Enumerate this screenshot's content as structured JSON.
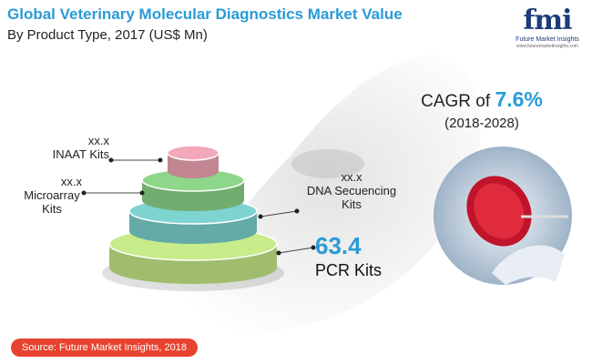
{
  "title": "Global Veterinary Molecular Diagnostics Market Value",
  "subtitle": "By Product Type, 2017 (US$ Mn)",
  "logo": {
    "mark": "fmi",
    "name": "Future Market Insights",
    "url": "www.futuremarketinsights.com"
  },
  "cagr": {
    "prefix": "CAGR of ",
    "value": "7.6%",
    "period": "(2018-2028)"
  },
  "source": "Source: Future Market Insights, 2018",
  "colors": {
    "accent": "#2a9bd6",
    "source_bg": "#e8432e"
  },
  "chart_data": {
    "type": "stacked-tiers",
    "tiers": [
      {
        "name": "INAAT Kits",
        "value_label": "xx.x",
        "color": "#f2a8b8"
      },
      {
        "name": "Microarray Kits",
        "value_label": "xx.x",
        "color": "#8ed78a"
      },
      {
        "name": "DNA Secuencing Kits",
        "value_label": "xx.x",
        "color": "#7dd4d0"
      },
      {
        "name": "PCR Kits",
        "value_label": "63.4",
        "value": 63.4,
        "color": "#c8ec8a"
      }
    ]
  }
}
